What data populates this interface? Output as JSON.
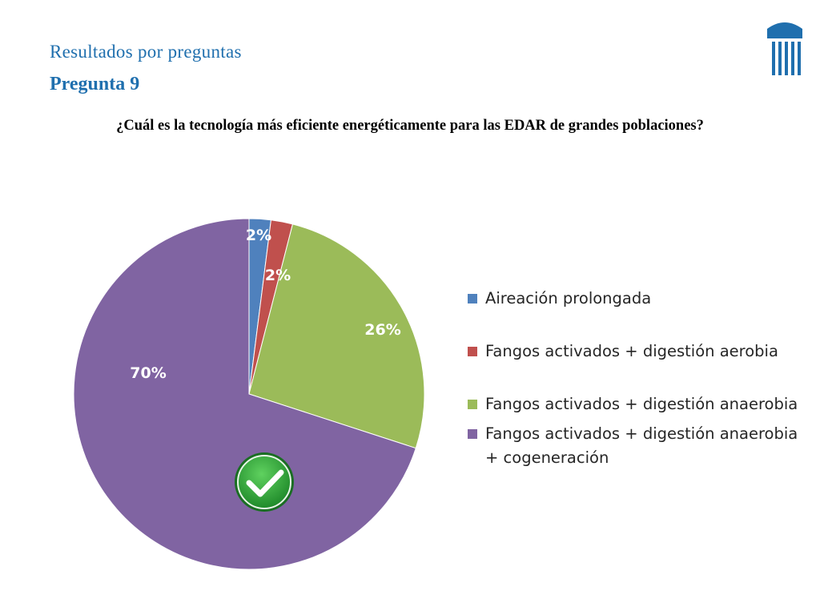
{
  "header": {
    "subtitle": "Resultados por preguntas",
    "title": "Pregunta 9"
  },
  "question": "¿Cuál es la tecnología más eficiente energéticamente para las EDAR de grandes poblaciones?",
  "logo": {
    "icon": "columns-logo-icon",
    "color": "#1f6fae"
  },
  "correct_marker": {
    "icon": "checkmark-icon",
    "answer": "Fangos activados + digestión anaerobia + cogeneración"
  },
  "chart_data": {
    "type": "pie",
    "title": "",
    "categories": [
      "Aireación prolongada",
      "Fangos activados + digestión aerobia",
      "Fangos activados + digestión anaerobia",
      "Fangos activados + digestión anaerobia + cogeneración"
    ],
    "values": [
      2,
      2,
      26,
      70
    ],
    "labels": [
      "2%",
      "2%",
      "26%",
      "70%"
    ],
    "colors": [
      "#4f81bd",
      "#c0504d",
      "#9bbb59",
      "#8064a2"
    ],
    "legend_position": "right"
  }
}
